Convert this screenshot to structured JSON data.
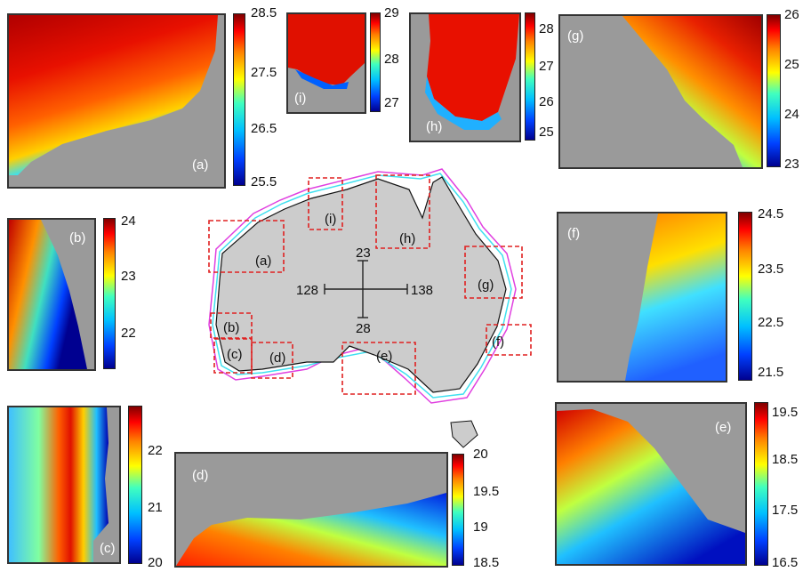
{
  "panels": {
    "a": {
      "label": "(a)",
      "ticks": [
        "28.5",
        "27.5",
        "26.5",
        "25.5"
      ]
    },
    "b": {
      "label": "(b)",
      "ticks": [
        "24",
        "23",
        "22"
      ]
    },
    "c": {
      "label": "(c)",
      "ticks": [
        "22",
        "21",
        "20"
      ]
    },
    "d": {
      "label": "(d)",
      "ticks": [
        "20",
        "19.5",
        "19",
        "18.5"
      ]
    },
    "e": {
      "label": "(e)",
      "ticks": [
        "19.5",
        "18.5",
        "17.5",
        "16.5"
      ]
    },
    "f": {
      "label": "(f)",
      "ticks": [
        "24.5",
        "23.5",
        "22.5",
        "21.5"
      ]
    },
    "g": {
      "label": "(g)",
      "ticks": [
        "26",
        "25",
        "24",
        "23"
      ]
    },
    "h": {
      "label": "(h)",
      "ticks": [
        "28",
        "27",
        "26",
        "25"
      ]
    },
    "i": {
      "label": "(i)",
      "ticks": [
        "29",
        "28",
        "27"
      ]
    }
  },
  "map": {
    "box_labels": [
      "(a)",
      "(b)",
      "(c)",
      "(d)",
      "(e)",
      "(f)",
      "(g)",
      "(h)",
      "(i)"
    ],
    "scale": {
      "north": "23",
      "south": "28",
      "west": "128",
      "east": "138"
    }
  },
  "colors": {
    "land": "#9a9a9a",
    "box": "#e02020",
    "coast_cyan": "#40e0f0",
    "coast_magenta": "#e040e0"
  },
  "colormap": "jet"
}
